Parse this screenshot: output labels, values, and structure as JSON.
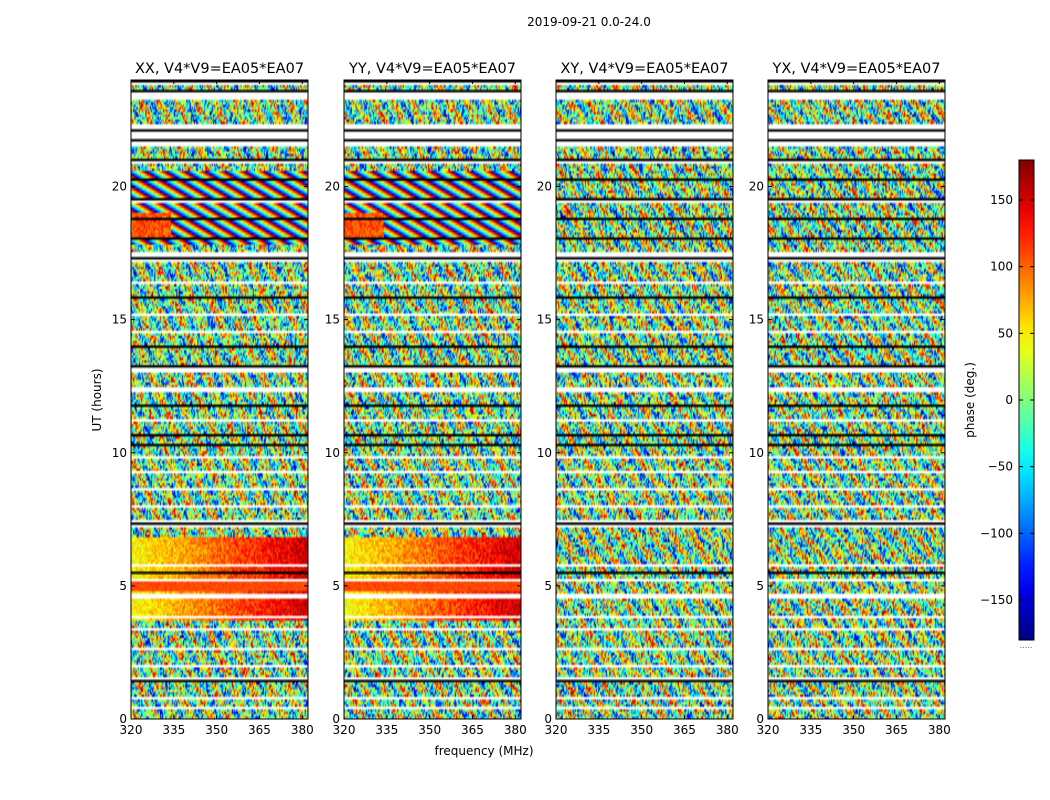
{
  "figure": {
    "suptitle": "2019-09-21 0.0-24.0"
  },
  "chart_data": {
    "type": "heatmap",
    "xlabel": "frequency (MHz)",
    "ylabel": "UT (hours)",
    "xlim": [
      320,
      382
    ],
    "ylim": [
      0,
      24
    ],
    "xticks": [
      320,
      335,
      350,
      365,
      380
    ],
    "yticks": [
      0,
      5,
      10,
      15,
      20
    ],
    "grid": false,
    "panels": [
      {
        "title": "XX, V4*V9=EA05*EA07",
        "coherent_phase": true
      },
      {
        "title": "YY, V4*V9=EA05*EA07",
        "coherent_phase": true
      },
      {
        "title": "XY, V4*V9=EA05*EA07",
        "coherent_phase": false
      },
      {
        "title": "YX, V4*V9=EA05*EA07",
        "coherent_phase": false
      }
    ],
    "flagged_hours": [
      [
        0.35,
        0.5
      ],
      [
        0.75,
        0.8
      ],
      [
        1.4,
        1.55
      ],
      [
        1.95,
        2.05
      ],
      [
        2.6,
        2.7
      ],
      [
        3.35,
        3.45
      ],
      [
        3.8,
        3.9
      ],
      [
        4.5,
        4.7
      ],
      [
        5.15,
        5.22
      ],
      [
        5.45,
        5.5
      ],
      [
        5.75,
        5.8
      ],
      [
        6.05,
        6.1
      ],
      [
        6.55,
        6.6
      ],
      [
        7.2,
        7.45
      ],
      [
        7.9,
        8.0
      ],
      [
        8.55,
        8.65
      ],
      [
        9.2,
        9.3
      ],
      [
        9.75,
        9.85
      ],
      [
        10.25,
        10.3
      ],
      [
        10.65,
        10.75
      ],
      [
        11.15,
        11.25
      ],
      [
        11.75,
        11.85
      ],
      [
        12.3,
        12.45
      ],
      [
        13.0,
        13.3
      ],
      [
        13.9,
        14.0
      ],
      [
        14.5,
        14.6
      ],
      [
        15.1,
        15.25
      ],
      [
        15.75,
        15.85
      ],
      [
        16.35,
        16.45
      ],
      [
        17.2,
        17.55
      ],
      [
        18.0,
        18.1
      ],
      [
        18.75,
        18.85
      ],
      [
        19.4,
        19.55
      ],
      [
        20.2,
        20.3
      ],
      [
        20.85,
        21.0
      ],
      [
        21.55,
        22.3
      ],
      [
        23.3,
        23.6
      ],
      [
        23.8,
        24.0
      ]
    ],
    "colorbar": {
      "label": "phase (deg.)",
      "range": [
        -180,
        180
      ],
      "ticks": [
        150,
        100,
        50,
        0,
        -50,
        -100,
        -150
      ],
      "colormap": "jet",
      "extra_label": "....."
    }
  }
}
